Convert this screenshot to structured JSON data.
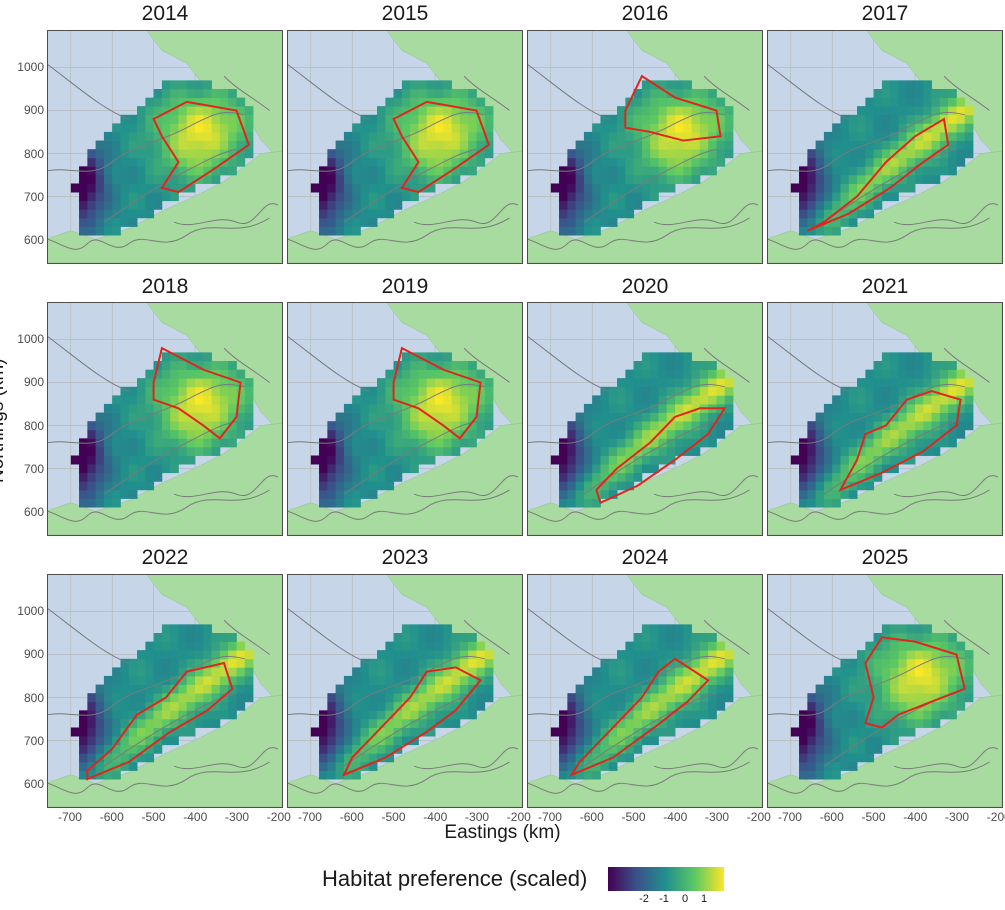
{
  "figure": {
    "panels": [
      {
        "title": "2014",
        "preference_grid": {},
        "outline": {}
      },
      {
        "title": "2015"
      },
      {
        "title": "2016"
      },
      {
        "title": "2017"
      },
      {
        "title": "2018"
      },
      {
        "title": "2019"
      },
      {
        "title": "2020"
      },
      {
        "title": "2021"
      },
      {
        "title": "2022"
      },
      {
        "title": "2023"
      },
      {
        "title": "2024"
      },
      {
        "title": "2025"
      }
    ],
    "x_axis_label": "Eastings (km)",
    "y_axis_label": "Northings (km)",
    "x_ticks": [
      "-700",
      "-600",
      "-500",
      "-400",
      "-300",
      "-200"
    ],
    "y_ticks": [
      "1000",
      "900",
      "800",
      "700",
      "600"
    ],
    "legend": {
      "title": "Habitat preference (scaled)",
      "ticks": [
        "-2",
        "-1",
        "0",
        "1"
      ]
    },
    "colors": {
      "sea": "#c6d5e8",
      "land": "#a8dba0",
      "grid": "#b3b3b3",
      "outline": "#e3241b",
      "contour": "#7a7a7a",
      "scale": [
        "#440154",
        "#3b528b",
        "#21908d",
        "#5dc963",
        "#fde725"
      ]
    }
  }
}
